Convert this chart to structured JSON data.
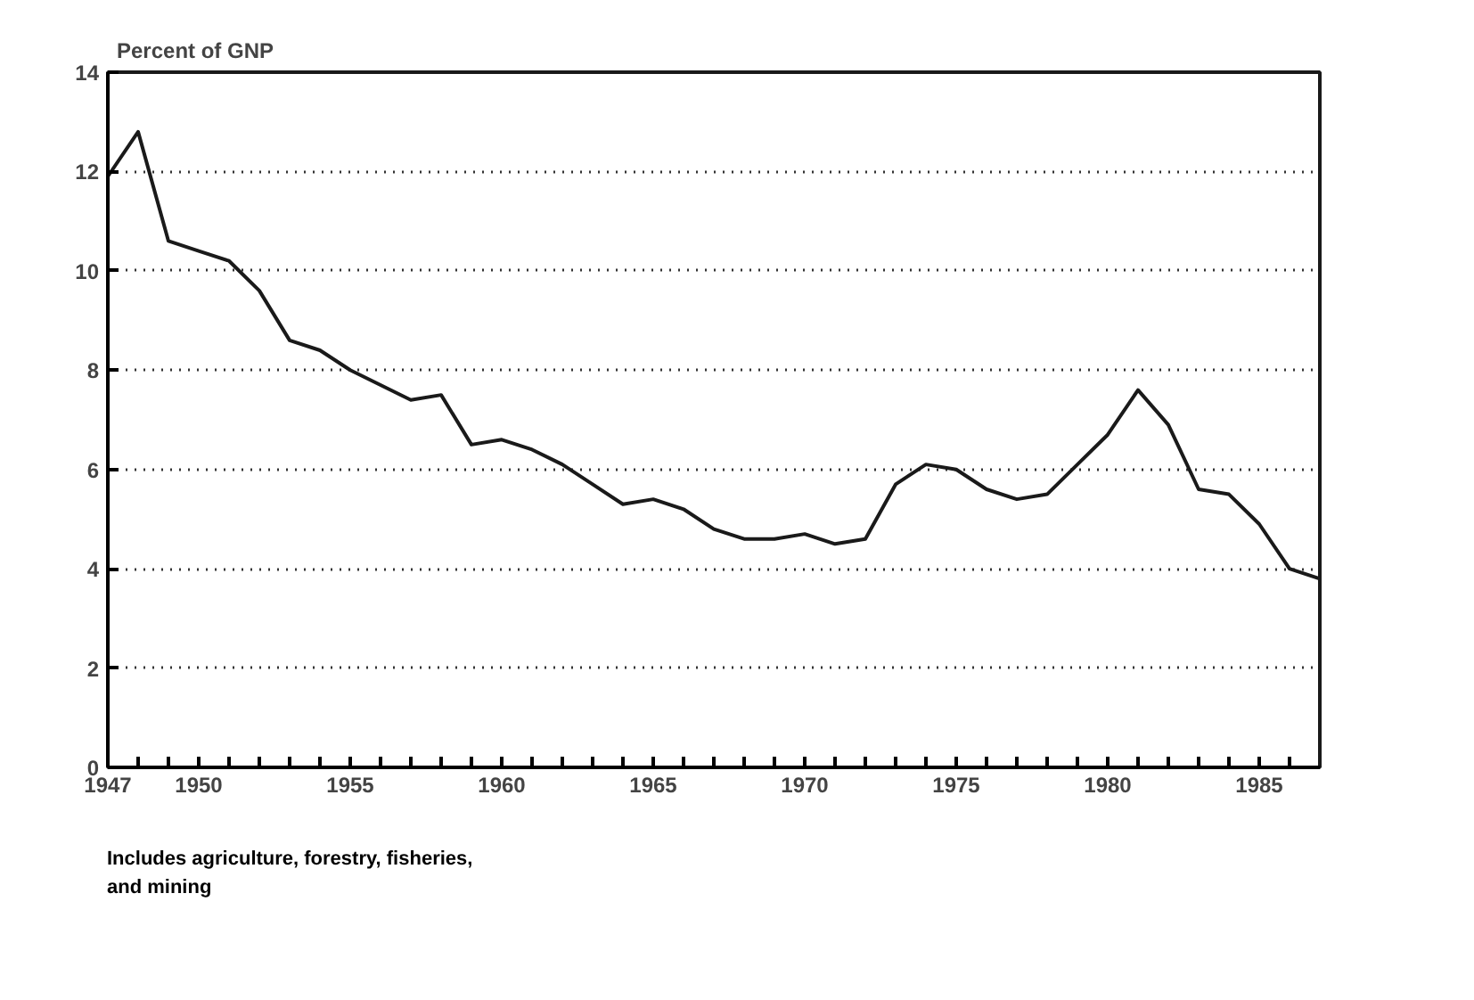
{
  "chart_data": {
    "type": "line",
    "ylabel": "Percent of GNP",
    "x": [
      1947,
      1948,
      1949,
      1950,
      1951,
      1952,
      1953,
      1954,
      1955,
      1956,
      1957,
      1958,
      1959,
      1960,
      1961,
      1962,
      1963,
      1964,
      1965,
      1966,
      1967,
      1968,
      1969,
      1970,
      1971,
      1972,
      1973,
      1974,
      1975,
      1976,
      1977,
      1978,
      1979,
      1980,
      1981,
      1982,
      1983,
      1984,
      1985,
      1986,
      1987
    ],
    "series": [
      {
        "color": "#1a1a1a",
        "values": [
          11.9,
          12.8,
          10.6,
          10.4,
          10.2,
          9.6,
          8.6,
          8.4,
          8.0,
          7.7,
          7.4,
          7.5,
          6.5,
          6.6,
          6.4,
          6.1,
          5.7,
          5.3,
          5.4,
          5.2,
          4.8,
          4.6,
          4.6,
          4.7,
          4.5,
          4.6,
          5.7,
          6.1,
          6.0,
          5.6,
          5.4,
          5.5,
          6.1,
          6.7,
          7.6,
          6.9,
          5.6,
          5.5,
          4.9,
          4.0,
          3.8
        ]
      }
    ],
    "xlim": [
      1947,
      1987
    ],
    "xticks": [
      1947,
      {
        "value": 1948,
        "label": null
      },
      {
        "value": 1949,
        "label": null
      },
      1950,
      {
        "value": 1951,
        "label": null
      },
      {
        "value": 1952,
        "label": null
      },
      {
        "value": 1953,
        "label": null
      },
      {
        "value": 1954,
        "label": null
      },
      1955,
      {
        "value": 1956,
        "label": null
      },
      {
        "value": 1957,
        "label": null
      },
      {
        "value": 1958,
        "label": null
      },
      {
        "value": 1959,
        "label": null
      },
      1960,
      {
        "value": 1961,
        "label": null
      },
      {
        "value": 1962,
        "label": null
      },
      {
        "value": 1963,
        "label": null
      },
      {
        "value": 1964,
        "label": null
      },
      1965,
      {
        "value": 1966,
        "label": null
      },
      {
        "value": 1967,
        "label": null
      },
      {
        "value": 1968,
        "label": null
      },
      {
        "value": 1969,
        "label": null
      },
      1970,
      {
        "value": 1971,
        "label": null
      },
      {
        "value": 1972,
        "label": null
      },
      {
        "value": 1973,
        "label": null
      },
      {
        "value": 1974,
        "label": null
      },
      1975,
      {
        "value": 1976,
        "label": null
      },
      {
        "value": 1977,
        "label": null
      },
      {
        "value": 1978,
        "label": null
      },
      {
        "value": 1979,
        "label": null
      },
      1980,
      {
        "value": 1981,
        "label": null
      },
      {
        "value": 1982,
        "label": null
      },
      {
        "value": 1983,
        "label": null
      },
      {
        "value": 1984,
        "label": null
      },
      1985,
      {
        "value": 1986,
        "label": null
      }
    ],
    "ylim": [
      0,
      14
    ],
    "yticks": [
      0,
      2,
      4,
      6,
      8,
      10,
      12,
      14
    ],
    "grid": "y",
    "line_style": "solid",
    "marker": "none",
    "annotations": [
      "Includes agriculture, forestry, fisheries, and mining"
    ]
  }
}
